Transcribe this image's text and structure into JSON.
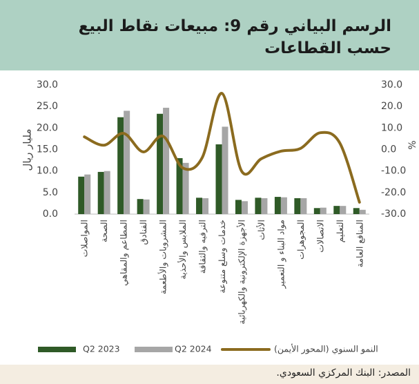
{
  "chart_data": {
    "type": "bar-line",
    "title": "الرسم البياني رقم 9: مبيعات نقاط البيع حسب القطاعات",
    "ylabel": "مليار ريال",
    "y2label": "%",
    "source": "المصدر: البنك المركزي السعودي.",
    "categories": [
      "المواصلات",
      "الصحة",
      "المطاعم والمقاهي",
      "الفنادق",
      "المشروبات والأطعمة",
      "الملابس والأحذية",
      "الترفيه والثقافة",
      "خدمات وسلع متنوعة",
      "الأجهزة الإلكترونية والكهربائية",
      "الأثاث",
      "مواد البناء و التعمير",
      "المجوهرات",
      "الاتصالات",
      "التعليم",
      "المنافع العامة"
    ],
    "series": [
      {
        "name": "Q2 2023",
        "color": "#2f5a27",
        "type": "bar",
        "values": [
          8.7,
          9.8,
          22.5,
          3.5,
          23.3,
          13.0,
          3.8,
          16.2,
          3.3,
          3.8,
          4.0,
          3.7,
          1.4,
          1.9,
          1.4
        ]
      },
      {
        "name": "Q2 2024",
        "color": "#a6a6a6",
        "type": "bar",
        "values": [
          9.2,
          10.0,
          24.0,
          3.4,
          24.7,
          11.9,
          3.7,
          20.3,
          3.0,
          3.7,
          3.9,
          3.7,
          1.5,
          1.9,
          1.0
        ]
      },
      {
        "name": "النمو السنوي (المحور الأيمن)",
        "color": "#8b6b1f",
        "type": "line",
        "axis": "y2",
        "values": [
          5.9,
          2.0,
          7.5,
          -1.1,
          6.2,
          -8.5,
          -3.7,
          26.1,
          -10.0,
          -4.3,
          -0.8,
          0.5,
          7.8,
          3.0,
          -24.5
        ]
      }
    ],
    "ylim": [
      0,
      30
    ],
    "yticks": [
      {
        "value": 0,
        "label": "0.0"
      },
      {
        "value": 5,
        "label": "5.0"
      },
      {
        "value": 10,
        "label": "10.0"
      },
      {
        "value": 15,
        "label": "15.0"
      },
      {
        "value": 20,
        "label": "20.0"
      },
      {
        "value": 25,
        "label": "25.0"
      },
      {
        "value": 30,
        "label": "30.0"
      }
    ],
    "y2lim": [
      -30,
      30
    ],
    "y2ticks": [
      {
        "value": -30,
        "label": "-30.0"
      },
      {
        "value": -20,
        "label": "-20.0"
      },
      {
        "value": -10,
        "label": "-10.0"
      },
      {
        "value": 0,
        "label": "0.0"
      },
      {
        "value": 10,
        "label": "10.0"
      },
      {
        "value": 20,
        "label": "20.0"
      },
      {
        "value": 30,
        "label": "30.0"
      }
    ],
    "grid": false
  }
}
